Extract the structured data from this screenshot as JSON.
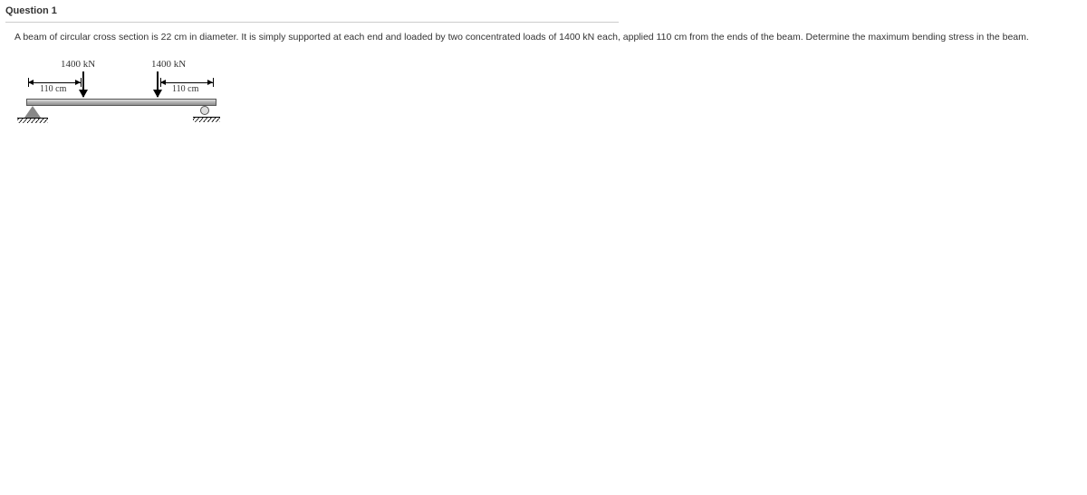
{
  "question": {
    "title": "Question 1",
    "body": "A beam of circular cross section is 22 cm in diameter. It is simply supported at each end and loaded by two concentrated loads of 1400 kN each, applied 110 cm from the ends of the beam. Determine the maximum bending stress in the beam."
  },
  "diagram": {
    "force_label_1": "1400 kN",
    "force_label_2": "1400 kN",
    "dim_label_1": "110 cm",
    "dim_label_2": "110 cm",
    "beam_color_top": "#e0e0e0",
    "beam_color_bottom": "#909090",
    "support_left_type": "pin",
    "support_right_type": "roller"
  },
  "colors": {
    "text": "#333333",
    "divider": "#cccccc",
    "stroke": "#000000"
  }
}
